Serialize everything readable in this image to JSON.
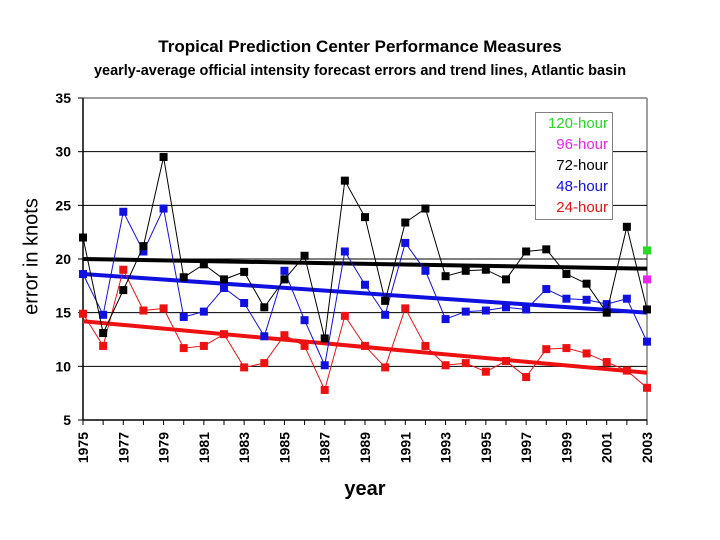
{
  "chart_data": {
    "type": "line",
    "title": "Tropical Prediction Center Performance Measures",
    "subtitle": "yearly-average official intensity forecast errors and trend lines, Atlantic basin",
    "xlabel": "year",
    "ylabel": "error in knots",
    "xlim": [
      1975,
      2003
    ],
    "ylim": [
      5,
      35
    ],
    "yticks": [
      5,
      10,
      15,
      20,
      25,
      30,
      35
    ],
    "xtick_labels": [
      "1975",
      "1977",
      "1979",
      "1981",
      "1983",
      "1985",
      "1987",
      "1989",
      "1991",
      "1993",
      "1995",
      "1997",
      "1999",
      "2001",
      "2003"
    ],
    "grid": "horizontal",
    "legend_position": "top-right",
    "x": [
      1975,
      1976,
      1977,
      1978,
      1979,
      1980,
      1981,
      1982,
      1983,
      1984,
      1985,
      1986,
      1987,
      1988,
      1989,
      1990,
      1991,
      1992,
      1993,
      1994,
      1995,
      1996,
      1997,
      1998,
      1999,
      2000,
      2001,
      2002,
      2003
    ],
    "series": [
      {
        "name": "120-hour",
        "color": "#22dd22",
        "x": [
          2003
        ],
        "values": [
          20.8
        ]
      },
      {
        "name": "96-hour",
        "color": "#ee22ee",
        "x": [
          2003
        ],
        "values": [
          18.1
        ]
      },
      {
        "name": "72-hour",
        "color": "#000000",
        "values": [
          22.0,
          13.1,
          17.1,
          21.2,
          29.5,
          18.3,
          19.5,
          18.1,
          18.8,
          15.5,
          18.1,
          20.3,
          12.6,
          27.3,
          23.9,
          16.1,
          23.4,
          24.7,
          18.4,
          18.9,
          19.0,
          18.1,
          20.7,
          20.9,
          18.6,
          17.7,
          15.0,
          23.0,
          15.3
        ],
        "trend": [
          20.0,
          19.1
        ]
      },
      {
        "name": "48-hour",
        "color": "#1010e0",
        "values": [
          18.6,
          14.8,
          24.4,
          20.7,
          24.7,
          14.6,
          15.1,
          17.3,
          15.9,
          12.8,
          18.9,
          14.3,
          10.1,
          20.7,
          17.6,
          14.8,
          21.5,
          18.9,
          14.4,
          15.1,
          15.2,
          15.5,
          15.3,
          17.2,
          16.3,
          16.2,
          15.8,
          16.3,
          12.3
        ],
        "trend": [
          18.6,
          15.0
        ]
      },
      {
        "name": "24-hour",
        "color": "#ee1111",
        "values": [
          14.9,
          11.9,
          19.0,
          15.2,
          15.4,
          11.7,
          11.9,
          13.0,
          9.9,
          10.3,
          12.9,
          11.9,
          7.8,
          14.7,
          11.9,
          9.9,
          15.4,
          11.9,
          10.1,
          10.3,
          9.5,
          10.5,
          9.0,
          11.6,
          11.7,
          11.2,
          10.4,
          9.6,
          8.0
        ],
        "trend": [
          14.2,
          9.4
        ]
      }
    ]
  }
}
